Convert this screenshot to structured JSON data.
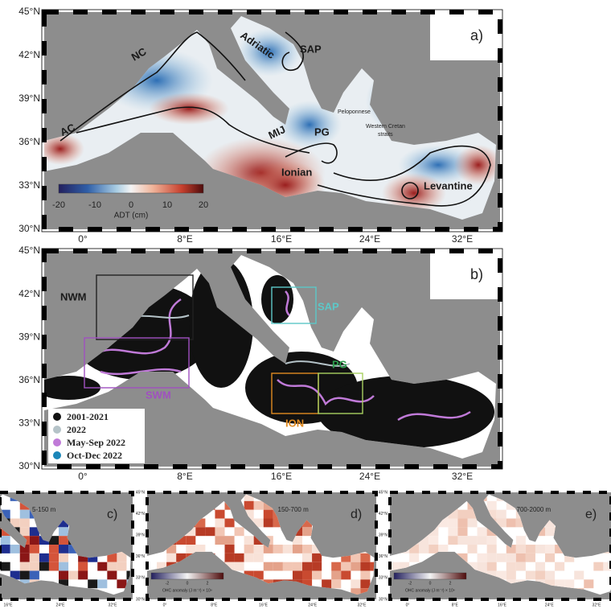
{
  "panel_a": {
    "label": "a)",
    "lat_labels": [
      "45°N",
      "42°N",
      "39°N",
      "36°N",
      "33°N",
      "30°N"
    ],
    "lon_labels": [
      "0°",
      "8°E",
      "16°E",
      "24°E",
      "32°E"
    ],
    "annotations": {
      "nc": "NC",
      "ac": "AC",
      "adriatic": "Adriatic",
      "sap": "SAP",
      "mij": "MIJ",
      "pg": "PG",
      "peloponnese": "Peloponnese",
      "cretan": "Western Cretan",
      "straits": "straits",
      "ionian": "Ionian",
      "levantine": "Levantine"
    },
    "colorbar": {
      "ticks": [
        "-20",
        "-10",
        "0",
        "10",
        "20"
      ],
      "label": "ADT (cm)"
    }
  },
  "panel_b": {
    "label": "b)",
    "lat_labels": [
      "45°N",
      "42°N",
      "39°N",
      "36°N",
      "33°N",
      "30°N"
    ],
    "lon_labels": [
      "0°",
      "8°E",
      "16°E",
      "24°E",
      "32°E"
    ],
    "regions": {
      "nwm": "NWM",
      "swm": "SWM",
      "sap": "SAP",
      "ion": "ION",
      "pg": "PG"
    },
    "legend": [
      {
        "label": "2001-2021",
        "color": "#111111"
      },
      {
        "label": "2022",
        "color": "#b5c3c8"
      },
      {
        "label": "May-Sep 2022",
        "color": "#c07ad8"
      },
      {
        "label": "Oct-Dec 2022",
        "color": "#1b86b8"
      }
    ]
  },
  "panel_c": {
    "label": "c)",
    "depth": "5-150 m",
    "lon_labels": [
      "16°E",
      "24°E",
      "32°E"
    ]
  },
  "panel_d": {
    "label": "d)",
    "depth": "150-700 m",
    "lat_labels": [
      "45°N",
      "42°N",
      "39°N",
      "36°N",
      "33°N",
      "30°N"
    ],
    "lon_labels": [
      "0°",
      "8°E",
      "16°E",
      "24°E",
      "32°E"
    ],
    "colorbar": {
      "ticks": [
        "-2",
        "0",
        "2"
      ],
      "label": "OHC anomaly (J m⁻²) × 10⁹"
    }
  },
  "panel_e": {
    "label": "e)",
    "depth": "700-2000 m",
    "lat_labels": [
      "45°N",
      "42°N",
      "39°N",
      "36°N",
      "33°N",
      "30°N"
    ],
    "lon_labels": [
      "0°",
      "8°E",
      "16°E",
      "24°E",
      "32°E"
    ],
    "colorbar": {
      "ticks": [
        "-2",
        "0",
        "2"
      ],
      "label": "OHC anomaly (J m⁻²) × 10⁹"
    }
  }
}
